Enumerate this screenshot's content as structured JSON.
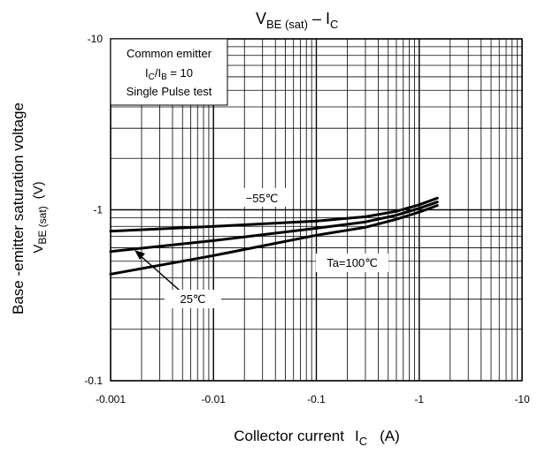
{
  "chart_data": {
    "type": "line",
    "title": {
      "main": "V",
      "sub": "BE (sat)",
      "sep": " – ",
      "main2": "I",
      "sub2": "C"
    },
    "x_axis": {
      "label": "Collector current",
      "symbol": "I",
      "symbol_sub": "C",
      "unit": "(A)",
      "scale": "log",
      "range": [
        -0.001,
        -10
      ],
      "ticks": [
        "-0.001",
        "-0.01",
        "-0.1",
        "-1",
        "-10"
      ]
    },
    "y_axis": {
      "label": "Base -emitter saturation voltage",
      "symbol": "V",
      "symbol_sub": "BE (sat)",
      "unit": "(V)",
      "scale": "log",
      "range": [
        -0.1,
        -10
      ],
      "ticks": [
        "-0.1",
        "-1",
        "-10"
      ]
    },
    "grid": true,
    "legend_box": {
      "line1": "Common emitter",
      "line2_a": "I",
      "line2_sub_a": "C",
      "line2_b": "/I",
      "line2_sub_b": "B",
      "line2_c": " = 10",
      "line3": "Single Pulse test"
    },
    "series": [
      {
        "name": "−55℃",
        "x": [
          -0.001,
          -0.01,
          -0.1,
          -0.3,
          -0.6,
          -1.0,
          -1.5
        ],
        "y": [
          -0.75,
          -0.8,
          -0.86,
          -0.91,
          -0.98,
          -1.07,
          -1.17
        ]
      },
      {
        "name": "25℃",
        "x": [
          -0.001,
          -0.01,
          -0.1,
          -0.3,
          -0.6,
          -1.0,
          -1.5
        ],
        "y": [
          -0.57,
          -0.66,
          -0.78,
          -0.85,
          -0.93,
          -1.02,
          -1.11
        ]
      },
      {
        "name": "Ta=100℃",
        "x": [
          -0.001,
          -0.01,
          -0.1,
          -0.3,
          -0.6,
          -1.0,
          -1.5
        ],
        "y": [
          -0.42,
          -0.54,
          -0.71,
          -0.79,
          -0.88,
          -0.97,
          -1.06
        ]
      }
    ],
    "annotations": [
      "−55℃",
      "Ta=100℃",
      "25℃"
    ]
  }
}
